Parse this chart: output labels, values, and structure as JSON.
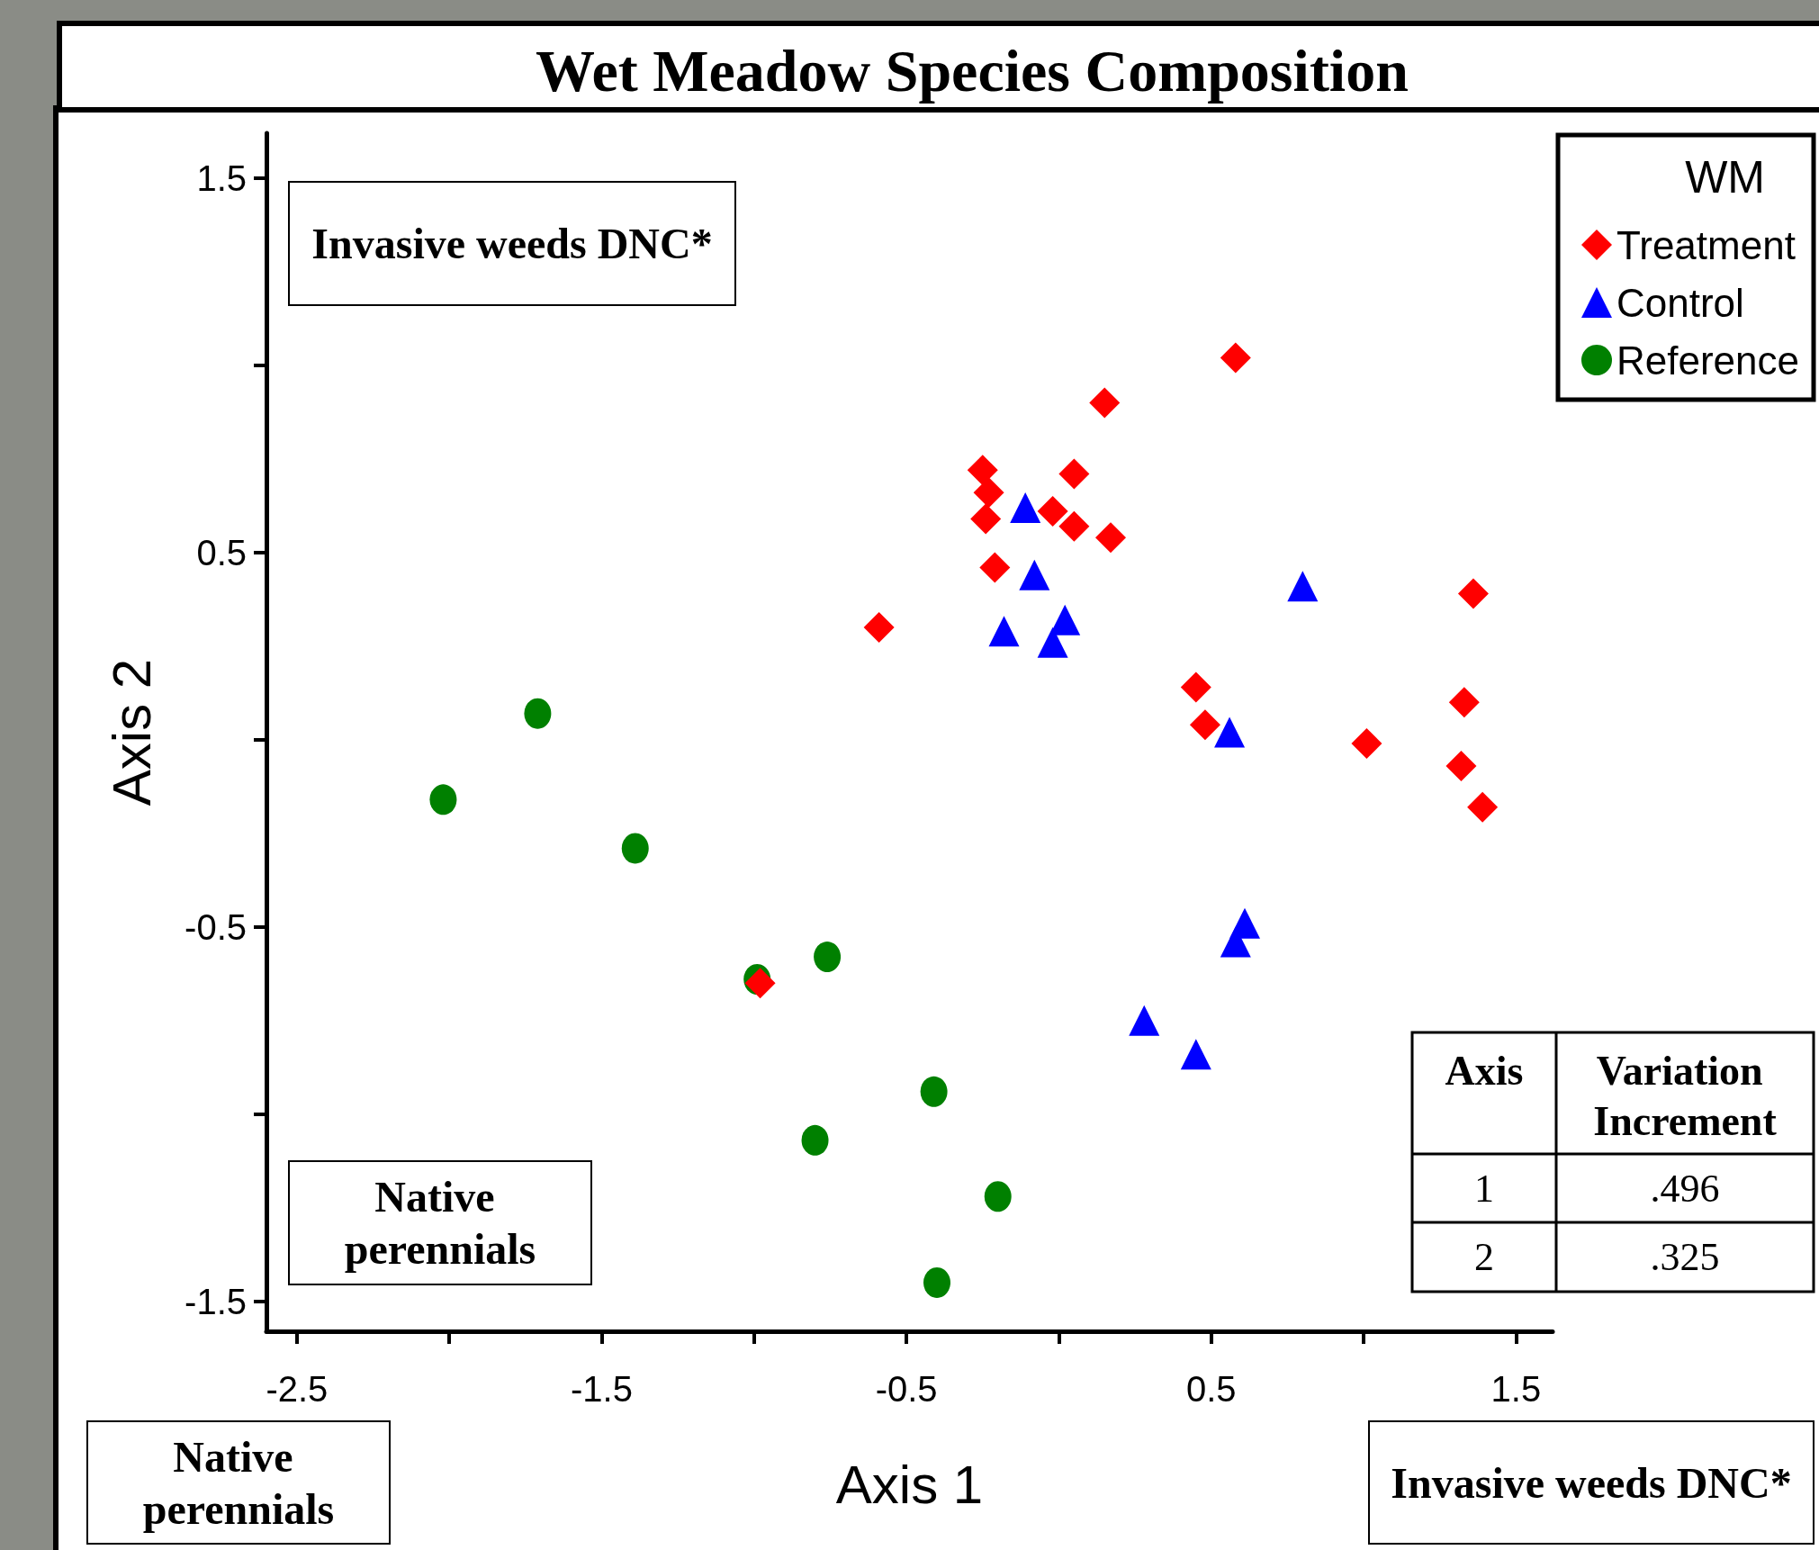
{
  "chart_data": {
    "type": "scatter",
    "title": "Wet Meadow Species Composition",
    "xlabel": "Axis 1",
    "ylabel": "Axis 2",
    "legend_title": "WM",
    "legend": "top right",
    "grid": false,
    "xlim": [
      -2.6,
      1.62
    ],
    "ylim": [
      -1.58,
      1.62
    ],
    "xticks": [
      -2.5,
      {
        "value": -2,
        "label": null
      },
      -1.5,
      {
        "value": -1,
        "label": null
      },
      -0.5,
      {
        "value": 0,
        "label": null
      },
      0.5,
      {
        "value": 1,
        "label": null
      },
      1.5
    ],
    "yticks": [
      -1.5,
      {
        "value": -1,
        "label": null
      },
      -0.5,
      {
        "value": 0,
        "label": null
      },
      0.5,
      {
        "value": 1,
        "label": null
      },
      1.5
    ],
    "annotations": [
      "Invasive weeds DNC*",
      "Native perennials",
      "Native perennials",
      "Invasive weeds DNC*",
      "Axis",
      "Variation Increment",
      "1",
      ".496",
      "2",
      ".325"
    ],
    "series": [
      {
        "name": "Treatment",
        "color": "#ff0000",
        "marker": "diamond",
        "x": [
          0.58,
          0.15,
          -0.25,
          0.05,
          -0.23,
          -0.02,
          -0.24,
          0.05,
          0.17,
          -0.21,
          -0.59,
          1.36,
          0.45,
          1.33,
          0.48,
          1.01,
          1.32,
          1.39,
          -0.98
        ],
        "values": [
          1.02,
          0.9,
          0.72,
          0.71,
          0.66,
          0.61,
          0.59,
          0.57,
          0.54,
          0.46,
          0.3,
          0.39,
          0.14,
          0.1,
          0.04,
          -0.01,
          -0.07,
          -0.18,
          -0.65
        ]
      },
      {
        "name": "Control",
        "color": "#0000ff",
        "marker": "triangle",
        "x": [
          -0.11,
          -0.08,
          0.8,
          0.02,
          -0.18,
          -0.02,
          0.56,
          0.61,
          0.58,
          0.28,
          0.45
        ],
        "values": [
          0.62,
          0.44,
          0.41,
          0.32,
          0.29,
          0.26,
          0.02,
          -0.49,
          -0.54,
          -0.75,
          -0.84
        ]
      },
      {
        "name": "Reference",
        "color": "#008000",
        "marker": "circle",
        "x": [
          -1.71,
          -2.02,
          -1.39,
          -0.99,
          -0.76,
          -0.41,
          -0.8,
          -0.2,
          -0.4
        ],
        "values": [
          0.07,
          -0.16,
          -0.29,
          -0.64,
          -0.58,
          -0.94,
          -1.07,
          -1.22,
          -1.45
        ]
      }
    ]
  }
}
